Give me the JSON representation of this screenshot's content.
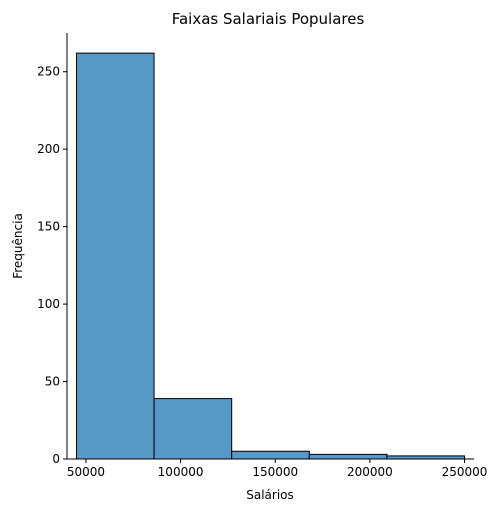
{
  "chart_data": {
    "type": "bar",
    "title": "Faixas Salariais Populares",
    "xlabel": "Salários",
    "ylabel": "Frequência",
    "bins": [
      {
        "x0": 45000,
        "x1": 86000,
        "count": 262
      },
      {
        "x0": 86000,
        "x1": 127000,
        "count": 39
      },
      {
        "x0": 127000,
        "x1": 168000,
        "count": 5
      },
      {
        "x0": 168000,
        "x1": 209000,
        "count": 3
      },
      {
        "x0": 209000,
        "x1": 250000,
        "count": 2
      }
    ],
    "xlim": [
      40000,
      255000
    ],
    "ylim": [
      0,
      275
    ],
    "xticks": [
      50000,
      100000,
      150000,
      200000,
      250000
    ],
    "xtick_labels": [
      "50000",
      "100000",
      "150000",
      "200000",
      "250000"
    ],
    "yticks": [
      0,
      50,
      100,
      150,
      200,
      250
    ],
    "ytick_labels": [
      "0",
      "50",
      "100",
      "150",
      "200",
      "250"
    ],
    "grid": false,
    "colors": {
      "bar_fill": "#5899c8",
      "bar_edge": "#000000",
      "axis": "#000000"
    }
  }
}
